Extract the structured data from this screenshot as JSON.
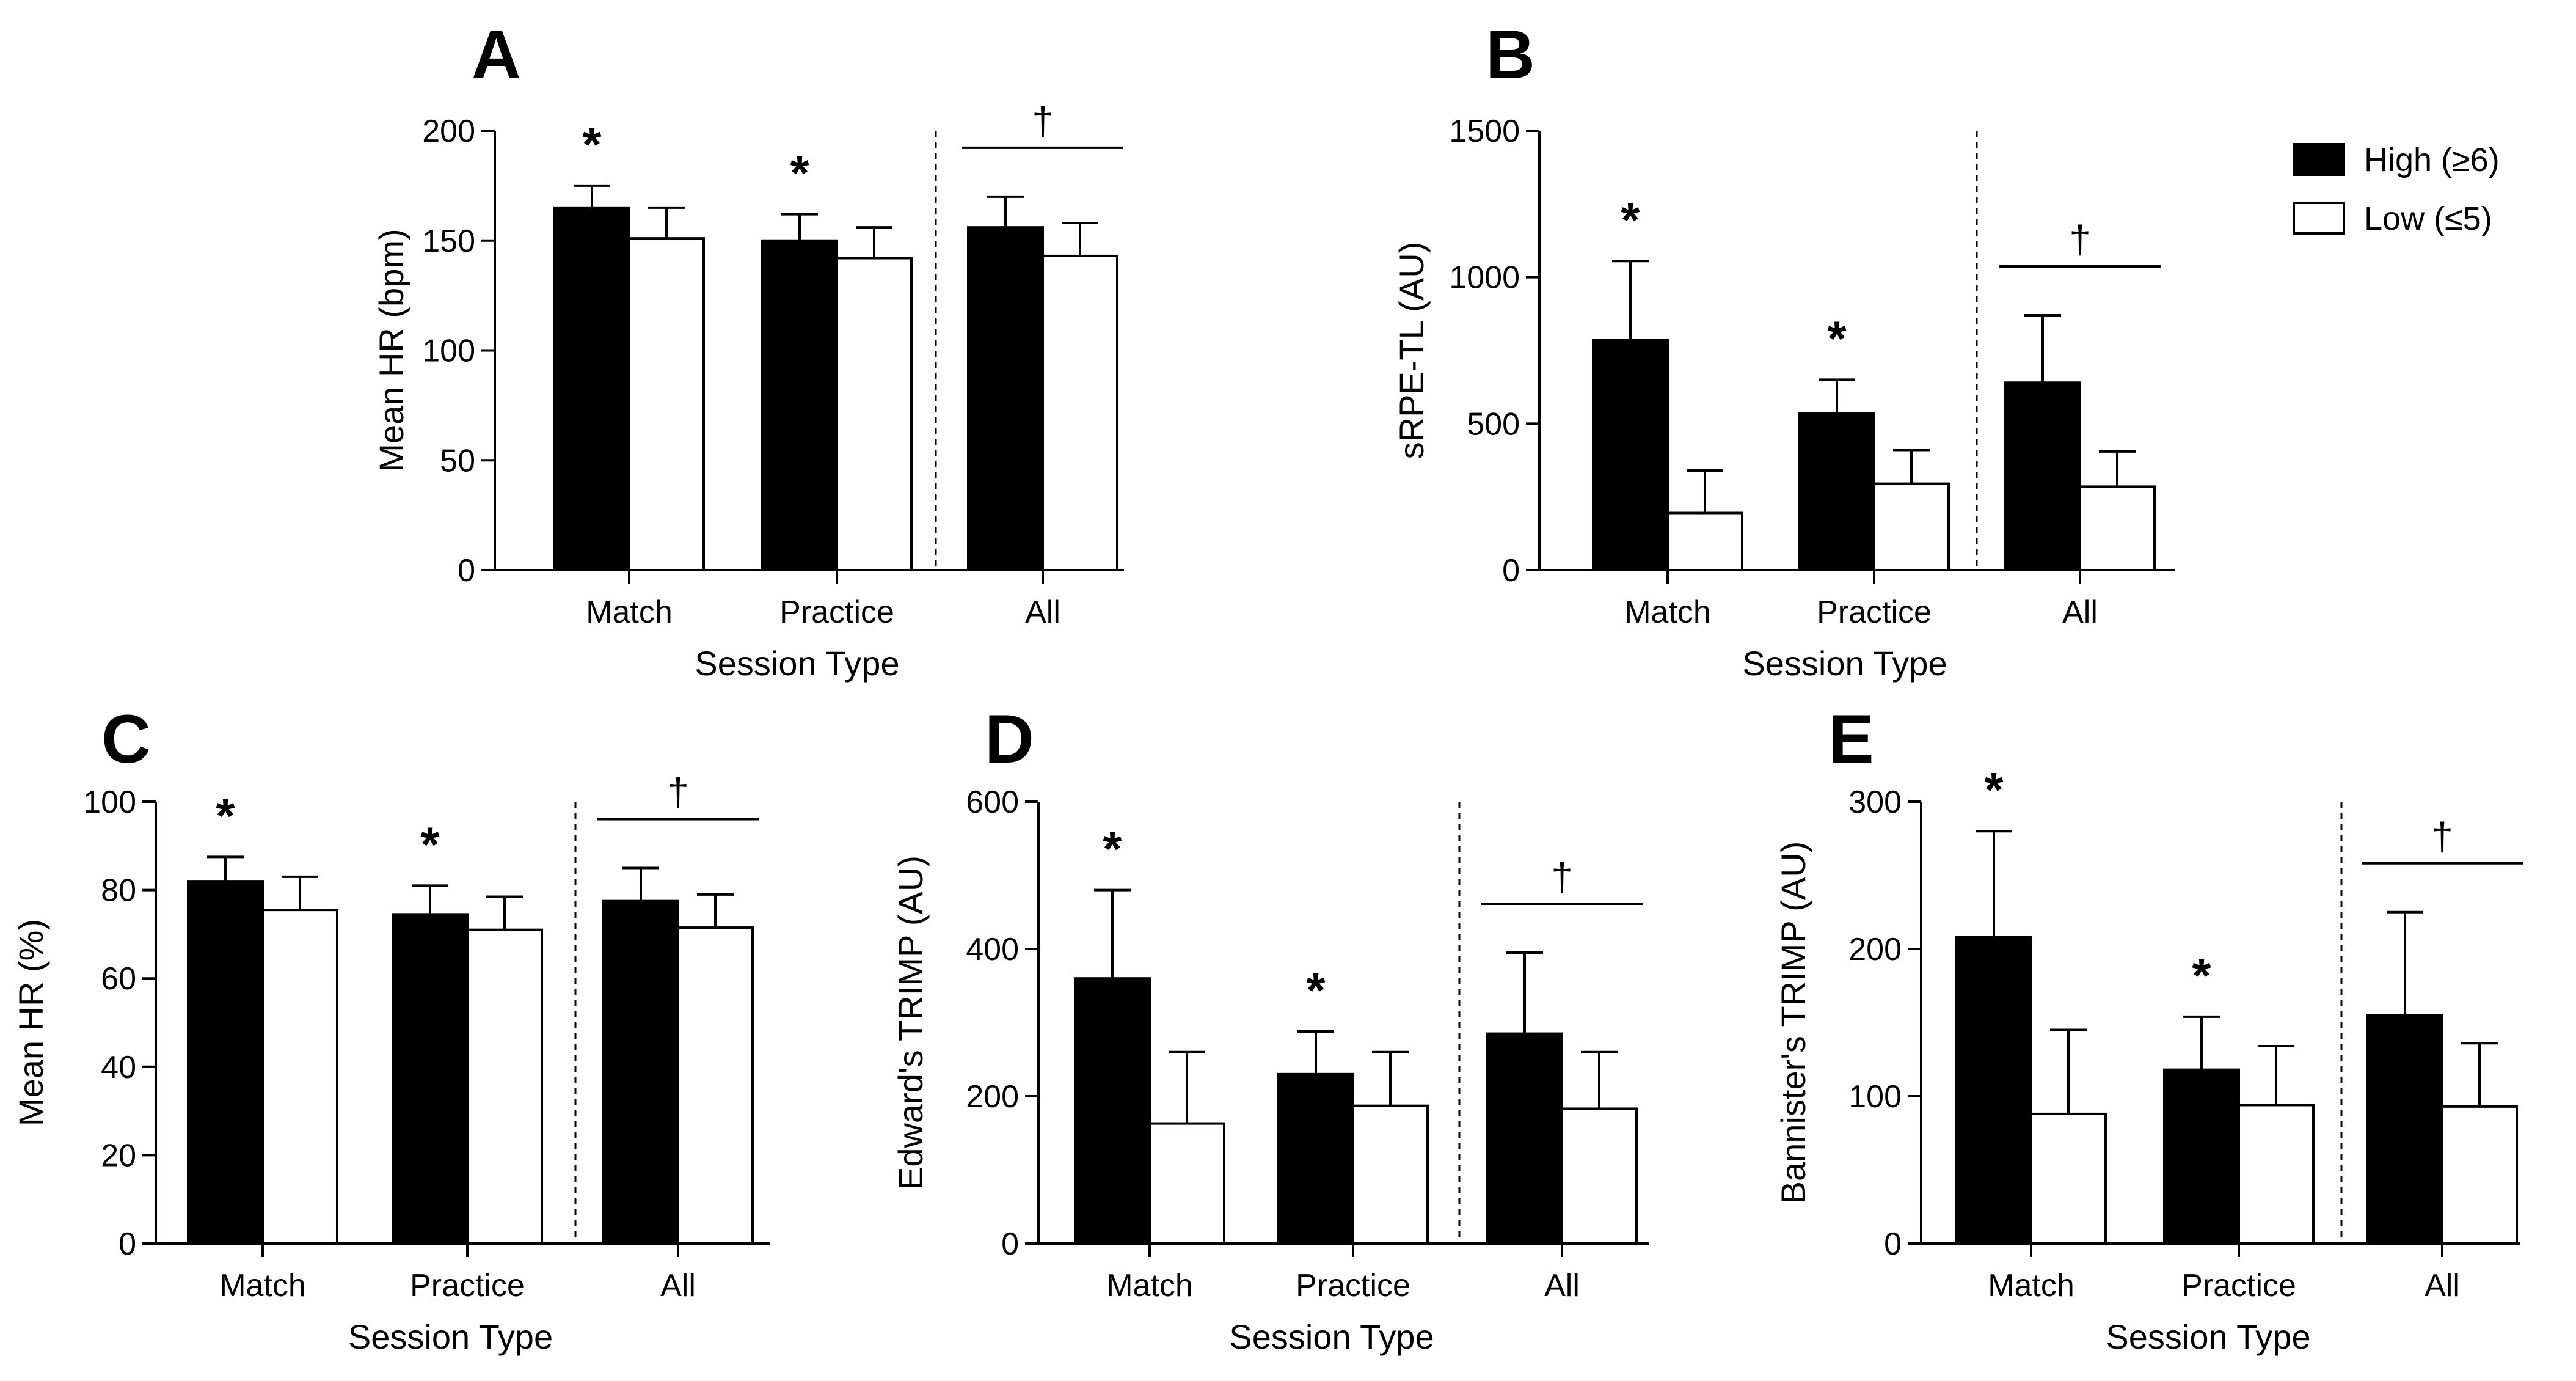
{
  "chart_data": [
    {
      "panel": "A",
      "type": "bar",
      "categories": [
        "Match",
        "Practice",
        "All"
      ],
      "series": [
        {
          "name": "High (≥6)",
          "values": [
            165,
            150,
            156
          ],
          "errors": [
            10,
            12,
            14
          ]
        },
        {
          "name": "Low (≤5)",
          "values": [
            151,
            142,
            143
          ],
          "errors": [
            14,
            14,
            15
          ]
        }
      ],
      "ylabel": "Mean HR (bpm)",
      "xlabel": "Session Type",
      "ylim": [
        0,
        200
      ],
      "yticks": [
        "0",
        "50",
        "100",
        "150",
        "200"
      ],
      "significance": [
        "*",
        "*",
        "†"
      ]
    },
    {
      "panel": "B",
      "type": "bar",
      "categories": [
        "Match",
        "Practice",
        "All"
      ],
      "series": [
        {
          "name": "High (≥6)",
          "values": [
            785,
            535,
            640
          ],
          "errors": [
            270,
            115,
            230
          ]
        },
        {
          "name": "Low (≤5)",
          "values": [
            195,
            295,
            285
          ],
          "errors": [
            145,
            115,
            120
          ]
        }
      ],
      "ylabel": "sRPE-TL (AU)",
      "xlabel": "Session Type",
      "ylim": [
        0,
        1500
      ],
      "yticks": [
        "0",
        "500",
        "1000",
        "1500"
      ],
      "significance": [
        "*",
        "*",
        "†"
      ]
    },
    {
      "panel": "C",
      "type": "bar",
      "categories": [
        "Match",
        "Practice",
        "All"
      ],
      "series": [
        {
          "name": "High (≥6)",
          "values": [
            82,
            74.5,
            77.5
          ],
          "errors": [
            5.5,
            6.5,
            7.5
          ]
        },
        {
          "name": "Low (≤5)",
          "values": [
            75.5,
            71,
            71.5
          ],
          "errors": [
            7.5,
            7.5,
            7.5
          ]
        }
      ],
      "ylabel": "Mean HR (%)",
      "xlabel": "Session Type",
      "ylim": [
        0,
        100
      ],
      "yticks": [
        "0",
        "20",
        "40",
        "60",
        "80",
        "100"
      ],
      "significance": [
        "*",
        "*",
        "†"
      ]
    },
    {
      "panel": "D",
      "type": "bar",
      "categories": [
        "Match",
        "Practice",
        "All"
      ],
      "series": [
        {
          "name": "High (≥6)",
          "values": [
            360,
            230,
            285
          ],
          "errors": [
            120,
            58,
            110
          ]
        },
        {
          "name": "Low (≤5)",
          "values": [
            163,
            187,
            183
          ],
          "errors": [
            97,
            73,
            77
          ]
        }
      ],
      "ylabel": "Edward's TRIMP (AU)",
      "xlabel": "Session Type",
      "ylim": [
        0,
        600
      ],
      "yticks": [
        "0",
        "200",
        "400",
        "600"
      ],
      "significance": [
        "*",
        "*",
        "†"
      ]
    },
    {
      "panel": "E",
      "type": "bar",
      "categories": [
        "Match",
        "Practice",
        "All"
      ],
      "series": [
        {
          "name": "High (≥6)",
          "values": [
            208,
            118,
            155
          ],
          "errors": [
            72,
            36,
            70
          ]
        },
        {
          "name": "Low (≤5)",
          "values": [
            88,
            94,
            93
          ],
          "errors": [
            57,
            40,
            43
          ]
        }
      ],
      "ylabel": "Bannister's TRIMP (AU)",
      "xlabel": "Session Type",
      "ylim": [
        0,
        300
      ],
      "yticks": [
        "0",
        "100",
        "200",
        "300"
      ],
      "significance": [
        "*",
        "*",
        "†"
      ]
    }
  ],
  "legend": {
    "high_label": "High (≥6)",
    "low_label": "Low (≤5)",
    "high_color": "#000000",
    "low_color": "#ffffff"
  }
}
